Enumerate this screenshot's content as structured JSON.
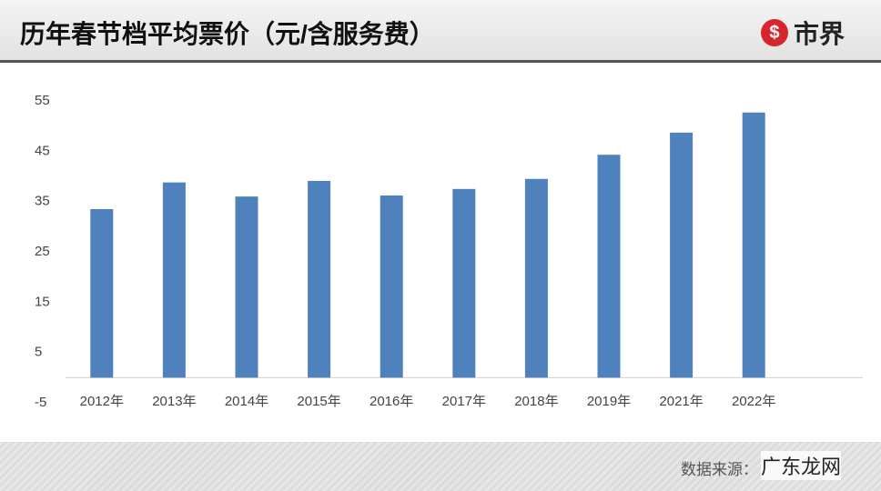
{
  "header": {
    "title": "历年春节档平均票价（元/含服务费）",
    "logo": "市界"
  },
  "chart_data": {
    "type": "bar",
    "categories": [
      "2012年",
      "2013年",
      "2014年",
      "2015年",
      "2016年",
      "2017年",
      "2018年",
      "2019年",
      "2021年",
      "2022年"
    ],
    "values": [
      33.5,
      38.8,
      36.0,
      39.1,
      36.2,
      37.5,
      39.5,
      44.3,
      48.7,
      52.7
    ],
    "color": "#4f81bd",
    "ylim": [
      -5,
      55
    ],
    "yticks": [
      -5,
      5,
      15,
      25,
      35,
      45,
      55
    ],
    "grid": false
  },
  "footer": {
    "source": "数据来源：",
    "watermark": "广东龙网"
  }
}
